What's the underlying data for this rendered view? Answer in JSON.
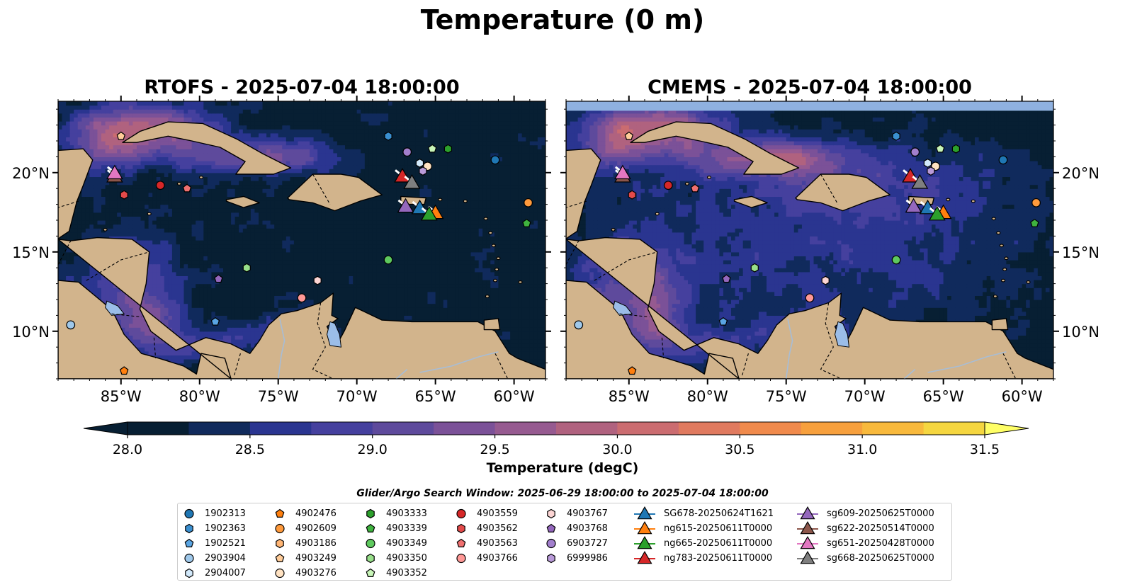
{
  "suptitle": "Temperature (0 m)",
  "panels": [
    {
      "title": "RTOFS - 2025-07-04 18:00:00",
      "model": "RTOFS"
    },
    {
      "title": "CMEMS - 2025-07-04 18:00:00",
      "model": "CMEMS"
    }
  ],
  "colorbar": {
    "label": "Temperature (degC)",
    "ticks": [
      "28.0",
      "28.5",
      "29.0",
      "29.5",
      "30.0",
      "30.5",
      "31.0",
      "31.5"
    ],
    "colors": [
      "#071f33",
      "#102a5c",
      "#2a3590",
      "#45409e",
      "#5e4a9c",
      "#7b5198",
      "#965a90",
      "#b0627f",
      "#cb6c70",
      "#e07a5f",
      "#f08a4c",
      "#f7a03d",
      "#f8b93c",
      "#f5d640"
    ],
    "over_color": "#ffff66"
  },
  "legend": {
    "title": "Glider/Argo Search Window: 2025-06-29 18:00:00 to 2025-07-04 18:00:00",
    "columns": [
      [
        {
          "label": "1902313",
          "marker": "circle",
          "color": "#1f77b4"
        },
        {
          "label": "1902363",
          "marker": "hexagon",
          "color": "#3a8fd0"
        },
        {
          "label": "1902521",
          "marker": "pentagon",
          "color": "#5aa5e3"
        },
        {
          "label": "2903904",
          "marker": "circle",
          "color": "#9fc8ea"
        },
        {
          "label": "2904007",
          "marker": "hexagon",
          "color": "#d2e9fb"
        }
      ],
      [
        {
          "label": "4902476",
          "marker": "pentagon",
          "color": "#ff7f0e"
        },
        {
          "label": "4902609",
          "marker": "circle",
          "color": "#ff9a3c"
        },
        {
          "label": "4903186",
          "marker": "hexagon",
          "color": "#ffb574"
        },
        {
          "label": "4903249",
          "marker": "pentagon",
          "color": "#ffcc99"
        },
        {
          "label": "4903276",
          "marker": "circle",
          "color": "#ffe2c2"
        }
      ],
      [
        {
          "label": "4903333",
          "marker": "hexagon",
          "color": "#2ca02c"
        },
        {
          "label": "4903339",
          "marker": "pentagon",
          "color": "#3fb33f"
        },
        {
          "label": "4903349",
          "marker": "circle",
          "color": "#5ec95e"
        },
        {
          "label": "4903350",
          "marker": "hexagon",
          "color": "#98df8a"
        },
        {
          "label": "4903352",
          "marker": "pentagon",
          "color": "#c8f5b8"
        }
      ],
      [
        {
          "label": "4903559",
          "marker": "circle",
          "color": "#d62728"
        },
        {
          "label": "4903562",
          "marker": "hexagon",
          "color": "#e34a4a"
        },
        {
          "label": "4903563",
          "marker": "pentagon",
          "color": "#f07070"
        },
        {
          "label": "4903766",
          "marker": "circle",
          "color": "#ff9896"
        }
      ],
      [
        {
          "label": "4903767",
          "marker": "hexagon",
          "color": "#fcd5d4"
        },
        {
          "label": "4903768",
          "marker": "pentagon",
          "color": "#9467bd"
        },
        {
          "label": "6903727",
          "marker": "circle",
          "color": "#a27fcd"
        },
        {
          "label": "6999986",
          "marker": "hexagon",
          "color": "#b99ad9"
        }
      ],
      [
        {
          "label": "SG678-20250624T1621",
          "marker": "triangle",
          "color": "#1f77b4"
        },
        {
          "label": "ng615-20250611T0000",
          "marker": "triangle",
          "color": "#ff7f0e"
        },
        {
          "label": "ng665-20250611T0000",
          "marker": "triangle",
          "color": "#2ca02c"
        },
        {
          "label": "ng783-20250611T0000",
          "marker": "triangle",
          "color": "#d62728"
        }
      ],
      [
        {
          "label": "sg609-20250625T0000",
          "marker": "triangle",
          "color": "#9467bd"
        },
        {
          "label": "sg622-20250514T0000",
          "marker": "triangle",
          "color": "#8c564b"
        },
        {
          "label": "sg651-20250428T0000",
          "marker": "triangle",
          "color": "#e377c2"
        },
        {
          "label": "sg668-20250625T0000",
          "marker": "triangle",
          "color": "#7f7f7f"
        }
      ]
    ]
  },
  "map": {
    "lon_ticks": [
      "85°W",
      "80°W",
      "75°W",
      "70°W",
      "65°W",
      "60°W"
    ],
    "lat_ticks": [
      "20°N",
      "15°N",
      "10°N"
    ],
    "lon_range": [
      -89,
      -58
    ],
    "lat_range": [
      7,
      24.5
    ],
    "land_color": "#d2b48c",
    "lake_color": "#9bbde8"
  },
  "chart_data": {
    "type": "heatmap",
    "title": "Temperature (0 m)",
    "variable": "Temperature (degC)",
    "depth_m": 0,
    "valid_time": "2025-07-04 18:00:00",
    "color_range": [
      28.0,
      31.5
    ],
    "panels": [
      "RTOFS",
      "CMEMS"
    ],
    "argo_floats": [
      {
        "id": "1902313",
        "lon": -61.2,
        "lat": 20.8
      },
      {
        "id": "1902363",
        "lon": -68.0,
        "lat": 22.3
      },
      {
        "id": "1902521",
        "lon": -79.0,
        "lat": 10.6
      },
      {
        "id": "2903904",
        "lon": -88.2,
        "lat": 10.4
      },
      {
        "id": "2904007",
        "lon": -66.0,
        "lat": 20.6
      },
      {
        "id": "4902476",
        "lon": -84.8,
        "lat": 7.5
      },
      {
        "id": "4902609",
        "lon": -59.1,
        "lat": 18.1
      },
      {
        "id": "4903186",
        "lon": -65.5,
        "lat": 20.4
      },
      {
        "id": "4903249",
        "lon": -85.0,
        "lat": 22.3
      },
      {
        "id": "4903276",
        "lon": -65.5,
        "lat": 20.4
      },
      {
        "id": "4903333",
        "lon": -64.2,
        "lat": 21.5
      },
      {
        "id": "4903339",
        "lon": -59.2,
        "lat": 16.8
      },
      {
        "id": "4903349",
        "lon": -68.0,
        "lat": 14.5
      },
      {
        "id": "4903350",
        "lon": -77.0,
        "lat": 14.0
      },
      {
        "id": "4903352",
        "lon": -65.2,
        "lat": 21.5
      },
      {
        "id": "4903559",
        "lon": -82.5,
        "lat": 19.2
      },
      {
        "id": "4903562",
        "lon": -84.8,
        "lat": 18.6
      },
      {
        "id": "4903563",
        "lon": -80.8,
        "lat": 19.0
      },
      {
        "id": "4903766",
        "lon": -73.5,
        "lat": 12.1
      },
      {
        "id": "4903767",
        "lon": -72.5,
        "lat": 13.2
      },
      {
        "id": "4903768",
        "lon": -78.8,
        "lat": 13.3
      },
      {
        "id": "6903727",
        "lon": -66.8,
        "lat": 21.3
      },
      {
        "id": "6999986",
        "lon": -65.8,
        "lat": 20.1
      }
    ],
    "gliders": [
      {
        "id": "SG678-20250624T1621",
        "lon": -66.0,
        "lat": 17.8
      },
      {
        "id": "ng615-20250611T0000",
        "lon": -65.0,
        "lat": 17.5
      },
      {
        "id": "ng665-20250611T0000",
        "lon": -65.4,
        "lat": 17.4
      },
      {
        "id": "ng783-20250611T0000",
        "lon": -67.1,
        "lat": 19.8
      },
      {
        "id": "sg609-20250625T0000",
        "lon": -66.9,
        "lat": 17.9
      },
      {
        "id": "sg622-20250514T0000",
        "lon": -85.4,
        "lat": 19.8
      },
      {
        "id": "sg651-20250428T0000",
        "lon": -85.4,
        "lat": 20.0
      },
      {
        "id": "sg668-20250625T0000",
        "lon": -66.5,
        "lat": 19.4
      }
    ]
  }
}
